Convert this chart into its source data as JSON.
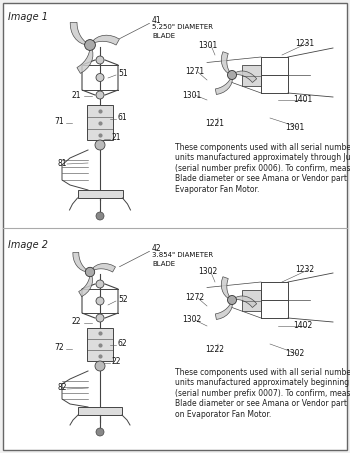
{
  "background_color": "#f5f5f5",
  "border_color": "#888888",
  "divider_color": "#aaaaaa",
  "image1_label": "Image 1",
  "image2_label": "Image 2",
  "label_color": "#222222",
  "line_color": "#444444",
  "image1_note": "These components used with all serial number prefix\nunits manufactured approximately through June 2000,\n(serial number prefix 0006). To confirm, measure Fan\nBlade diameter or see Amana or Vendor part number on\nEvaporator Fan Motor.",
  "image2_note": "These components used with all serial number prefix\nunits manufactured approximately beginning July 2000,\n(serial number prefix 0007). To confirm, measure Fan\nBlade diameter or see Amana or Vendor part number\non Evaporator Fan Motor.",
  "img1_blade_label1": "41",
  "img1_blade_label2": "5.250\" DIAMETER",
  "img1_blade_label3": "BLADE",
  "img2_blade_label1": "42",
  "img2_blade_label2": "3.854\" DIAMETER",
  "img2_blade_label3": "BLADE",
  "note_fontsize": 5.5,
  "label_fontsize": 6.0
}
